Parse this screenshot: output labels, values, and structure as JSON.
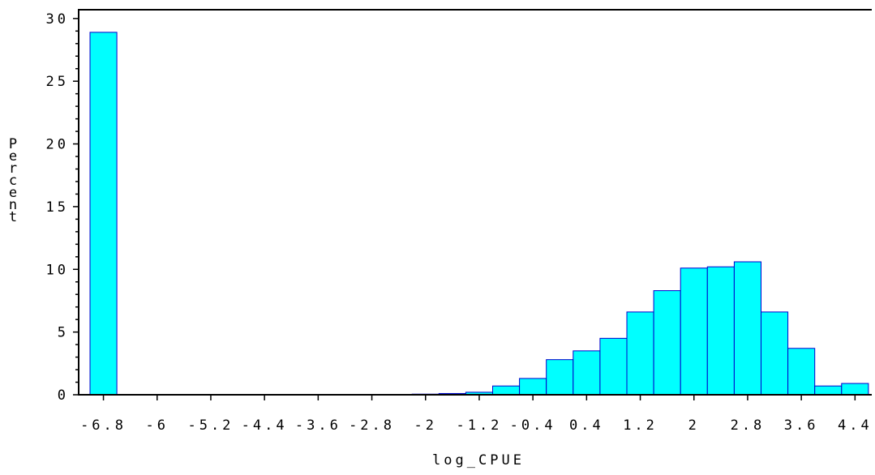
{
  "chart_data": {
    "type": "bar",
    "title": "",
    "xlabel": "log_CPUE",
    "ylabel": "Percent",
    "ylim": [
      0,
      30
    ],
    "yticks": [
      0,
      5,
      10,
      15,
      20,
      25,
      30
    ],
    "ytick_labels": [
      "0",
      "5",
      "10",
      "15",
      "20",
      "25",
      "30"
    ],
    "xtick_labels": [
      "-6.8",
      "-6",
      "-5.2",
      "-4.4",
      "-3.6",
      "-2.8",
      "-2",
      "-1.2",
      "-0.4",
      "0.4",
      "1.2",
      "2",
      "2.8",
      "3.6",
      "4.4"
    ],
    "bin_width": 0.4,
    "bin_centers": [
      -6.8,
      -6.4,
      -6.0,
      -5.6,
      -5.2,
      -4.8,
      -4.4,
      -4.0,
      -3.6,
      -3.2,
      -2.8,
      -2.4,
      -2.0,
      -1.6,
      -1.2,
      -0.8,
      -0.4,
      0.0,
      0.4,
      0.8,
      1.2,
      1.6,
      2.0,
      2.4,
      2.8,
      3.2,
      3.6,
      4.0,
      4.4
    ],
    "values": [
      28.9,
      0.0,
      0.0,
      0.0,
      0.0,
      0.0,
      0.0,
      0.0,
      0.0,
      0.0,
      0.02,
      0.03,
      0.05,
      0.1,
      0.2,
      0.7,
      1.3,
      2.8,
      3.5,
      4.5,
      6.6,
      8.3,
      10.1,
      10.2,
      10.6,
      6.6,
      3.7,
      0.7,
      0.9
    ],
    "bar_color": "#00FFFF",
    "bar_edge_color": "#0000CC",
    "grid": false
  }
}
